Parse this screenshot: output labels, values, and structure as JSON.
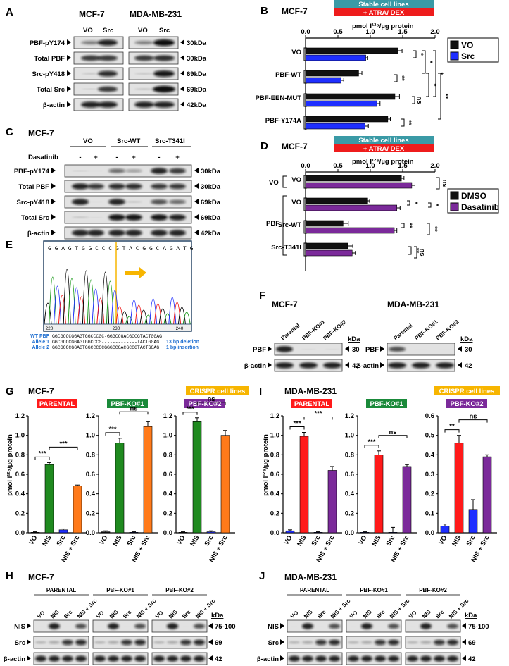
{
  "panels": {
    "A": {
      "letter": "A",
      "cell_lines": [
        "MCF-7",
        "MDA-MB-231"
      ],
      "lanes": [
        "VO",
        "Src"
      ],
      "rows": [
        "PBF-pY174",
        "Total PBF",
        "Src-pY418",
        "Total Src",
        "β-actin"
      ],
      "sizes": [
        "30kDa",
        "30kDa",
        "69kDa",
        "69kDa",
        "42kDa"
      ]
    },
    "B": {
      "letter": "B",
      "cell": "MCF-7",
      "banner_top": "Stable cell lines",
      "banner_bottom": "+ ATRA/ DEX",
      "axis_title": "pmol I¹²⁵/µg protein"
    },
    "C": {
      "letter": "C",
      "cell": "MCF-7",
      "groups": [
        "VO",
        "Src-WT",
        "Src-T341I"
      ],
      "drug_label": "Dasatinib",
      "treat": [
        "-",
        "+",
        "-",
        "+",
        "-",
        "+"
      ],
      "rows": [
        "PBF-pY174",
        "Total PBF",
        "Src-pY418",
        "Total Src",
        "β-actin"
      ],
      "sizes": [
        "30kDa",
        "30kDa",
        "69kDa",
        "69kDa",
        "42kDa"
      ]
    },
    "D": {
      "letter": "D",
      "cell": "MCF-7",
      "banner_top": "Stable cell lines",
      "banner_bottom": "+ ATRA/ DEX",
      "axis_title": "pmol I¹²⁵/µg protein",
      "group_vo": "VO",
      "group_pbf": "PBF"
    },
    "E": {
      "letter": "E",
      "seq_top": "G G A G T G G C C C G T A C G G C A G A T G",
      "axis_ticks": [
        "220",
        "230",
        "240"
      ],
      "rows": [
        {
          "name": "WT PBF",
          "seq": "GGCGCCCGGAGTGGCCCGC-GGGCCGACGCCGTACTGGAG",
          "note": ""
        },
        {
          "name": "Allele 1",
          "seq": "GGCGCCCGGAGTGGCCCG-------------TACTGGAG",
          "note": "13 bp deletion"
        },
        {
          "name": "Allele 2",
          "seq": "GGCGCCCGGAGTGGCCCGCGGGCCGACGCCGTACTGGAG",
          "note": "1 bp insertion"
        }
      ]
    },
    "F": {
      "letter": "F",
      "blots": [
        {
          "cell": "MCF-7",
          "lanes": [
            "Parental",
            "PBF-KO#1",
            "PBF-KO#2"
          ]
        },
        {
          "cell": "MDA-MB-231",
          "lanes": [
            "Parental",
            "PBF-KO#1",
            "PBF-KO#2"
          ]
        }
      ],
      "unit": "kDa",
      "rows": [
        "PBF",
        "β-actin"
      ],
      "sizes": [
        "30",
        "42"
      ]
    },
    "G": {
      "letter": "G",
      "cell": "MCF-7",
      "crispr": "CRISPR cell lines",
      "axis_title": "pmol I¹²⁵/µg protein"
    },
    "I": {
      "letter": "I",
      "cell": "MDA-MB-231",
      "crispr": "CRISPR cell lines",
      "axis_title": "pmol I¹²⁵/µg protein"
    },
    "H": {
      "letter": "H",
      "cell": "MCF-7",
      "groups": [
        "PARENTAL",
        "PBF-KO#1",
        "PBF-KO#2"
      ],
      "lanes": [
        "VO",
        "NIS",
        "Src",
        "NIS + Src"
      ],
      "rows": [
        "NIS",
        "Src",
        "β-actin"
      ],
      "sizes": [
        "75-100",
        "69",
        "42"
      ],
      "unit": "kDa"
    },
    "J": {
      "letter": "J",
      "cell": "MDA-MB-231",
      "groups": [
        "PARENTAL",
        "PBF-KO#1",
        "PBF-KO#2"
      ],
      "lanes": [
        "VO",
        "NIS",
        "Src",
        "NIS + Src"
      ],
      "rows": [
        "NIS",
        "Src",
        "β-actin"
      ],
      "sizes": [
        "75-100",
        "69",
        "42"
      ],
      "unit": "kDa"
    }
  },
  "colors": {
    "black": "#111111",
    "blue": "#1f2fff",
    "purple": "#7b2a9a",
    "green": "#1f8a1f",
    "orange": "#ff7a1a",
    "red": "#ff1a1a",
    "teal": "#3a9aa6",
    "yellow_box": "#f7b500",
    "kowgreen": "#1a8a3a"
  },
  "chart_data": [
    {
      "id": "B",
      "type": "bar",
      "orientation": "horizontal",
      "categories": [
        "VO",
        "PBF-WT",
        "PBF-EEN-MUT",
        "PBF-Y174A"
      ],
      "series": [
        {
          "name": "VO",
          "values": [
            1.42,
            0.82,
            1.38,
            1.27
          ],
          "errors": [
            0.07,
            0.05,
            0.07,
            0.04
          ]
        },
        {
          "name": "Src",
          "values": [
            0.93,
            0.55,
            1.1,
            0.92
          ],
          "errors": [
            0.03,
            0.04,
            0.05,
            0.05
          ]
        }
      ],
      "xlim": [
        0,
        2.0
      ],
      "xticks": [
        "0.0",
        "0.5",
        "1.0",
        "1.5",
        "2.0"
      ],
      "legend": "right",
      "stats": [
        "*",
        "**",
        "ns",
        "**",
        "*",
        "*",
        "*",
        "*",
        "**"
      ]
    },
    {
      "id": "D",
      "type": "bar",
      "orientation": "horizontal",
      "categories": [
        "VO",
        "VO",
        "Src-WT",
        "Src-T341I"
      ],
      "series": [
        {
          "name": "DMSO",
          "values": [
            1.48,
            0.96,
            0.58,
            0.65
          ],
          "errors": [
            0.04,
            0.03,
            0.08,
            0.08
          ]
        },
        {
          "name": "Dasatinib",
          "values": [
            1.64,
            1.41,
            1.37,
            0.72
          ],
          "errors": [
            0.05,
            0.05,
            0.04,
            0.05
          ]
        }
      ],
      "xlim": [
        0,
        2.0
      ],
      "xticks": [
        "0.0",
        "0.5",
        "1.0",
        "1.5",
        "2.0"
      ],
      "legend": "right",
      "stats": [
        "ns",
        "*",
        "*",
        "**",
        "**",
        "**",
        "ns"
      ]
    },
    {
      "id": "G",
      "type": "bar",
      "ylim": [
        0,
        1.2
      ],
      "yticks": [
        "0.0",
        "0.2",
        "0.4",
        "0.6",
        "0.8",
        "1.0",
        "1.2"
      ],
      "categories": [
        "VO",
        "NIS",
        "Src",
        "NIS + Src"
      ],
      "subpanels": [
        {
          "title": "PARENTAL",
          "values": [
            0.005,
            0.7,
            0.03,
            0.48
          ],
          "errors": [
            0.005,
            0.02,
            0.01,
            0.01
          ],
          "stats": [
            "***",
            "***"
          ]
        },
        {
          "title": "PBF-KO#1",
          "values": [
            0.01,
            0.92,
            0.005,
            1.09
          ],
          "errors": [
            0.01,
            0.05,
            0.005,
            0.05
          ],
          "stats": [
            "***",
            "ns"
          ]
        },
        {
          "title": "PBF-KO#2",
          "values": [
            0.005,
            1.14,
            0.01,
            1.0
          ],
          "errors": [
            0.005,
            0.04,
            0.01,
            0.05
          ],
          "stats": [
            "***",
            "ns"
          ]
        }
      ]
    },
    {
      "id": "I",
      "type": "bar",
      "categories": [
        "VO",
        "NIS",
        "Src",
        "NIS + Src"
      ],
      "subpanels": [
        {
          "title": "PARENTAL",
          "ylim": [
            0,
            1.2
          ],
          "yticks": [
            "0.0",
            "0.2",
            "0.4",
            "0.6",
            "0.8",
            "1.0",
            "1.2"
          ],
          "values": [
            0.02,
            0.99,
            0.005,
            0.64
          ],
          "errors": [
            0.01,
            0.04,
            0.005,
            0.04
          ],
          "stats": [
            "***",
            "***"
          ]
        },
        {
          "title": "PBF-KO#1",
          "ylim": [
            0,
            1.2
          ],
          "yticks": [
            "0.0",
            "0.2",
            "0.4",
            "0.6",
            "0.8",
            "1.0",
            "1.2"
          ],
          "values": [
            0.005,
            0.8,
            0.005,
            0.68
          ],
          "errors": [
            0.005,
            0.04,
            0.05,
            0.02
          ],
          "stats": [
            "***",
            "ns"
          ]
        },
        {
          "title": "PBF-KO#2",
          "ylim": [
            0,
            0.6
          ],
          "yticks": [
            "0.0",
            "0.1",
            "0.2",
            "0.3",
            "0.4",
            "0.5",
            "0.6"
          ],
          "values": [
            0.035,
            0.46,
            0.12,
            0.39
          ],
          "errors": [
            0.01,
            0.04,
            0.05,
            0.01
          ],
          "stats": [
            "**",
            "ns"
          ]
        }
      ]
    }
  ]
}
